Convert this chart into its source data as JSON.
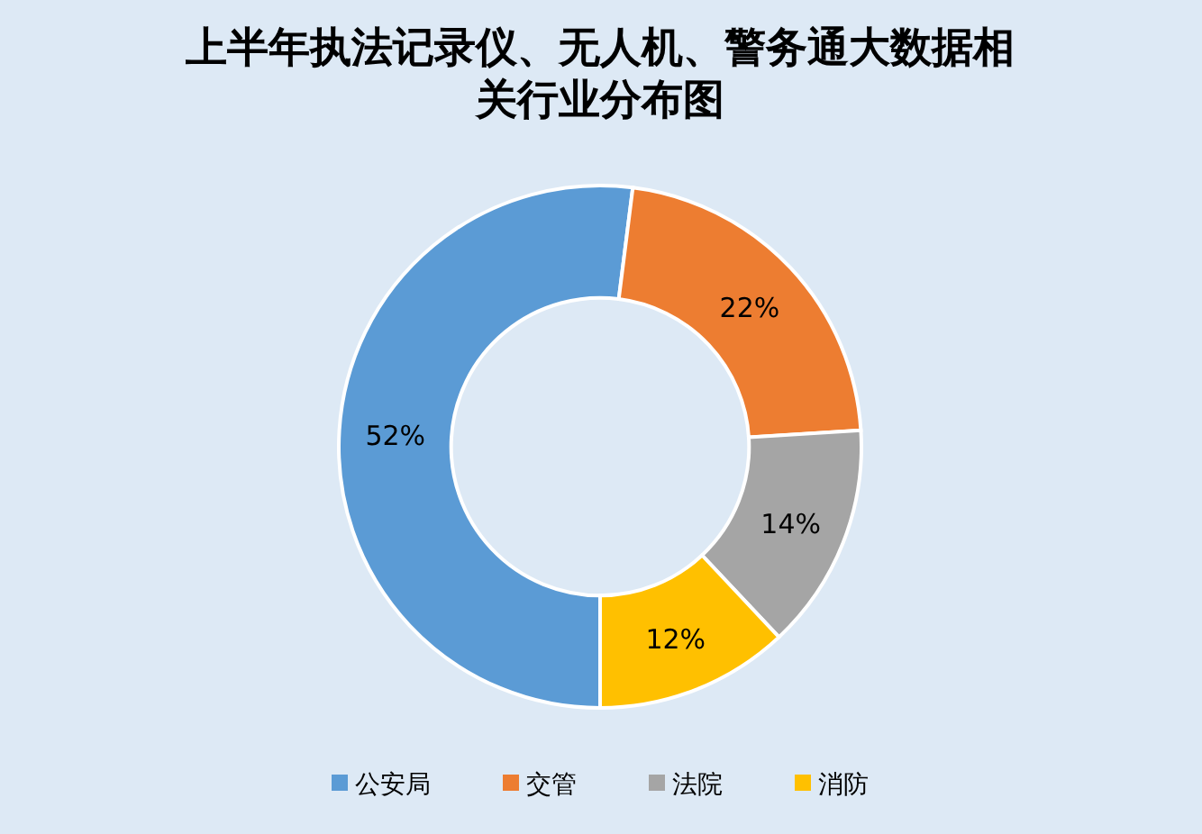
{
  "chart_data": {
    "type": "donut",
    "title": "上半年执法记录仪、无人机、警务通大数据相关行业分布图",
    "categories": [
      "公安局",
      "交管",
      "法院",
      "消防"
    ],
    "values": [
      52,
      22,
      14,
      12
    ],
    "colors": [
      "#5b9bd5",
      "#ed7d31",
      "#a5a5a5",
      "#ffc000"
    ],
    "value_labels": [
      "52%",
      "22%",
      "14%",
      "12%"
    ],
    "legend": "bottom"
  }
}
